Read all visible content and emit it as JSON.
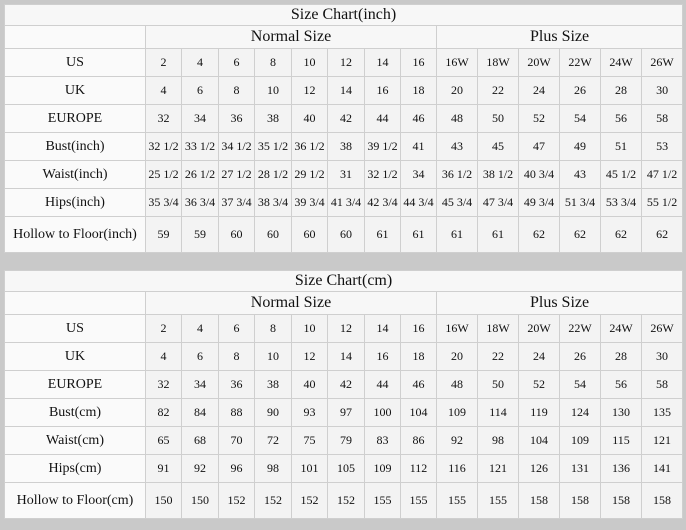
{
  "inch_chart": {
    "title": "Size Chart(inch)",
    "normal_label": "Normal Size",
    "plus_label": "Plus Size",
    "rows": [
      {
        "label": "US",
        "values": [
          "2",
          "4",
          "6",
          "8",
          "10",
          "12",
          "14",
          "16",
          "16W",
          "18W",
          "20W",
          "22W",
          "24W",
          "26W"
        ]
      },
      {
        "label": "UK",
        "values": [
          "4",
          "6",
          "8",
          "10",
          "12",
          "14",
          "16",
          "18",
          "20",
          "22",
          "24",
          "26",
          "28",
          "30"
        ]
      },
      {
        "label": "EUROPE",
        "values": [
          "32",
          "34",
          "36",
          "38",
          "40",
          "42",
          "44",
          "46",
          "48",
          "50",
          "52",
          "54",
          "56",
          "58"
        ]
      },
      {
        "label": "Bust(inch)",
        "values": [
          "32 1/2",
          "33 1/2",
          "34 1/2",
          "35 1/2",
          "36 1/2",
          "38",
          "39 1/2",
          "41",
          "43",
          "45",
          "47",
          "49",
          "51",
          "53"
        ]
      },
      {
        "label": "Waist(inch)",
        "values": [
          "25 1/2",
          "26 1/2",
          "27 1/2",
          "28 1/2",
          "29 1/2",
          "31",
          "32 1/2",
          "34",
          "36 1/2",
          "38 1/2",
          "40 3/4",
          "43",
          "45 1/2",
          "47 1/2"
        ]
      },
      {
        "label": "Hips(inch)",
        "values": [
          "35 3/4",
          "36 3/4",
          "37 3/4",
          "38 3/4",
          "39 3/4",
          "41 3/4",
          "42 3/4",
          "44 3/4",
          "45 3/4",
          "47 3/4",
          "49 3/4",
          "51 3/4",
          "53 3/4",
          "55 1/2"
        ]
      },
      {
        "label": "Hollow to Floor(inch)",
        "values": [
          "59",
          "59",
          "60",
          "60",
          "60",
          "60",
          "61",
          "61",
          "61",
          "61",
          "62",
          "62",
          "62",
          "62"
        ]
      }
    ]
  },
  "cm_chart": {
    "title": "Size Chart(cm)",
    "normal_label": "Normal Size",
    "plus_label": "Plus Size",
    "rows": [
      {
        "label": "US",
        "values": [
          "2",
          "4",
          "6",
          "8",
          "10",
          "12",
          "14",
          "16",
          "16W",
          "18W",
          "20W",
          "22W",
          "24W",
          "26W"
        ]
      },
      {
        "label": "UK",
        "values": [
          "4",
          "6",
          "8",
          "10",
          "12",
          "14",
          "16",
          "18",
          "20",
          "22",
          "24",
          "26",
          "28",
          "30"
        ]
      },
      {
        "label": "EUROPE",
        "values": [
          "32",
          "34",
          "36",
          "38",
          "40",
          "42",
          "44",
          "46",
          "48",
          "50",
          "52",
          "54",
          "56",
          "58"
        ]
      },
      {
        "label": "Bust(cm)",
        "values": [
          "82",
          "84",
          "88",
          "90",
          "93",
          "97",
          "100",
          "104",
          "109",
          "114",
          "119",
          "124",
          "130",
          "135"
        ]
      },
      {
        "label": "Waist(cm)",
        "values": [
          "65",
          "68",
          "70",
          "72",
          "75",
          "79",
          "83",
          "86",
          "92",
          "98",
          "104",
          "109",
          "115",
          "121"
        ]
      },
      {
        "label": "Hips(cm)",
        "values": [
          "91",
          "92",
          "96",
          "98",
          "101",
          "105",
          "109",
          "112",
          "116",
          "121",
          "126",
          "131",
          "136",
          "141"
        ]
      },
      {
        "label": "Hollow to Floor(cm)",
        "values": [
          "150",
          "150",
          "152",
          "152",
          "152",
          "152",
          "155",
          "155",
          "155",
          "155",
          "158",
          "158",
          "158",
          "158"
        ]
      }
    ]
  }
}
